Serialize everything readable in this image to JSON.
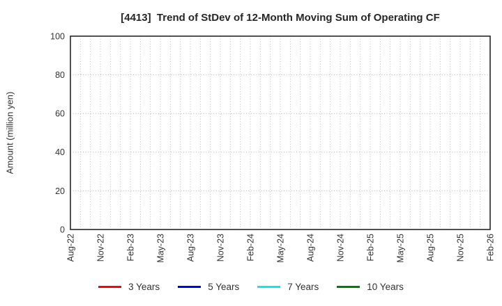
{
  "chart_data": {
    "type": "line",
    "title": "[4413]  Trend of StDev of 12-Month Moving Sum of Operating CF",
    "ylabel": "Amount (million yen)",
    "ylim": [
      0,
      100
    ],
    "yticks": [
      0,
      20,
      40,
      60,
      80,
      100
    ],
    "x_tick_labels": [
      "Aug-22",
      "Nov-22",
      "Feb-23",
      "May-23",
      "Aug-23",
      "Nov-23",
      "Feb-24",
      "May-24",
      "Aug-24",
      "Nov-24",
      "Feb-25",
      "May-25",
      "Aug-25",
      "Nov-25",
      "Feb-26"
    ],
    "x_total_months": 42,
    "x_major_step_months": 3,
    "x_minor_step_months": 1,
    "grid": "dotted",
    "legend_position": "bottom",
    "series": [
      {
        "name": "3 Years",
        "color": "#ff0000",
        "values": []
      },
      {
        "name": "5 Years",
        "color": "#0000ff",
        "values": []
      },
      {
        "name": "7 Years",
        "color": "#00eeee",
        "values": []
      },
      {
        "name": "10 Years",
        "color": "#008000",
        "values": []
      }
    ]
  },
  "colors": {
    "grid": "#b3b3b3",
    "axis": "#262626",
    "tick_text": "#333333",
    "background": "#ffffff"
  }
}
